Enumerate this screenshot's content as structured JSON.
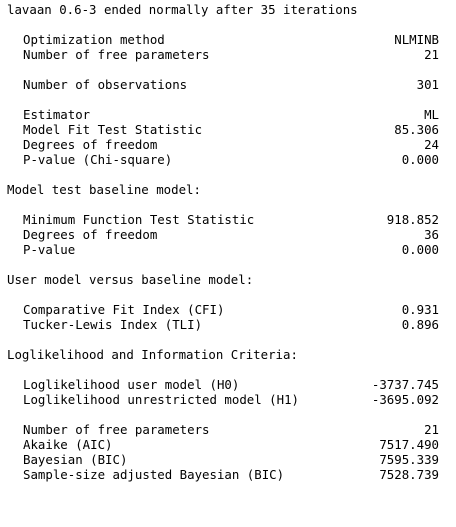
{
  "header": "lavaan 0.6-3 ended normally after 35 iterations",
  "summary": {
    "optimization_method": {
      "label": "Optimization method",
      "value": "NLMINB"
    },
    "free_parameters": {
      "label": "Number of free parameters",
      "value": "21"
    },
    "observations": {
      "label": "Number of observations",
      "value": "301"
    },
    "estimator": {
      "label": "Estimator",
      "value": "ML"
    },
    "fit_statistic": {
      "label": "Model Fit Test Statistic",
      "value": "85.306"
    },
    "degrees_of_freedom": {
      "label": "Degrees of freedom",
      "value": "24"
    },
    "p_value": {
      "label": "P-value (Chi-square)",
      "value": "0.000"
    }
  },
  "baseline": {
    "heading": "Model test baseline model:",
    "min_function": {
      "label": "Minimum Function Test Statistic",
      "value": "918.852"
    },
    "degrees_of_freedom": {
      "label": "Degrees of freedom",
      "value": "36"
    },
    "p_value": {
      "label": "P-value",
      "value": "0.000"
    }
  },
  "comparison": {
    "heading": "User model versus baseline model:",
    "cfi": {
      "label": "Comparative Fit Index (CFI)",
      "value": "0.931"
    },
    "tli": {
      "label": "Tucker-Lewis Index (TLI)",
      "value": "0.896"
    }
  },
  "loglik": {
    "heading": "Loglikelihood and Information Criteria:",
    "user_model": {
      "label": "Loglikelihood user model (H0)",
      "value": "-3737.745"
    },
    "unrestricted_model": {
      "label": "Loglikelihood unrestricted model (H1)",
      "value": "-3695.092"
    },
    "free_parameters": {
      "label": "Number of free parameters",
      "value": "21"
    },
    "aic": {
      "label": "Akaike (AIC)",
      "value": "7517.490"
    },
    "bic": {
      "label": "Bayesian (BIC)",
      "value": "7595.339"
    },
    "sabic": {
      "label": "Sample-size adjusted Bayesian (BIC)",
      "value": "7528.739"
    }
  }
}
